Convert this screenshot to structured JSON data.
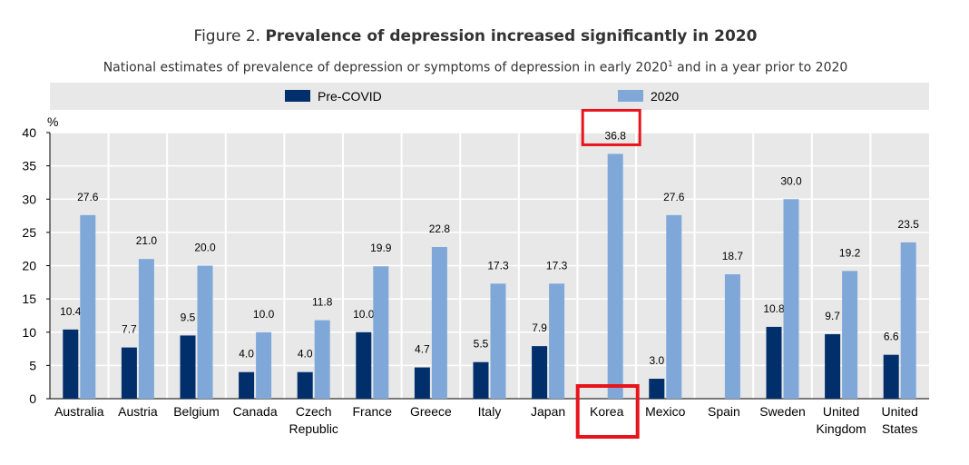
{
  "title": {
    "prefix": "Figure 2.",
    "main": "Prevalence of depression increased significantly in 2020"
  },
  "subtitle": {
    "text": "National estimates of prevalence of depression or symptoms of depression in early 2020",
    "sup": "1",
    "rest": " and in a year prior to 2020"
  },
  "chart_data": {
    "type": "bar",
    "unit": "%",
    "ylim": [
      0,
      40
    ],
    "yticks": [
      0,
      5,
      10,
      15,
      20,
      25,
      30,
      35,
      40
    ],
    "grid": true,
    "legend_position": "top",
    "categories": [
      [
        "Australia"
      ],
      [
        "Austria"
      ],
      [
        "Belgium"
      ],
      [
        "Canada"
      ],
      [
        "Czech",
        "Republic"
      ],
      [
        "France"
      ],
      [
        "Greece"
      ],
      [
        "Italy"
      ],
      [
        "Japan"
      ],
      [
        "Korea"
      ],
      [
        "Mexico"
      ],
      [
        "Spain"
      ],
      [
        "Sweden"
      ],
      [
        "United",
        "Kingdom"
      ],
      [
        "United",
        "States"
      ]
    ],
    "series": [
      {
        "name": "Pre-COVID",
        "color": "#002f6c",
        "values": [
          10.4,
          7.7,
          9.5,
          4.0,
          4.0,
          10.0,
          4.7,
          5.5,
          7.9,
          null,
          3.0,
          null,
          10.8,
          9.7,
          6.6
        ],
        "labels": [
          "10.4",
          "7.7",
          "9.5",
          "4.0",
          "4.0",
          "10.0",
          "4.7",
          "5.5",
          "7.9",
          "",
          "3.0",
          "",
          "10.8",
          "9.7",
          "6.6"
        ]
      },
      {
        "name": "2020",
        "color": "#7fa8d9",
        "values": [
          27.6,
          21.0,
          20.0,
          10.0,
          11.8,
          19.9,
          22.8,
          17.3,
          17.3,
          36.8,
          27.6,
          18.7,
          30.0,
          19.2,
          23.5
        ],
        "labels": [
          "27.6",
          "21.0",
          "20.0",
          "10.0",
          "11.8",
          "19.9",
          "22.8",
          "17.3",
          "17.3",
          "36.8",
          "27.6",
          "18.7",
          "30.0",
          "19.2",
          "23.5"
        ]
      }
    ],
    "highlight": {
      "category_index": 9,
      "color": "#e8141c"
    },
    "colors": {
      "legend_band": "#e8e8e8",
      "plot_background": "#e8e8e8",
      "grid": "#ffffff"
    }
  }
}
